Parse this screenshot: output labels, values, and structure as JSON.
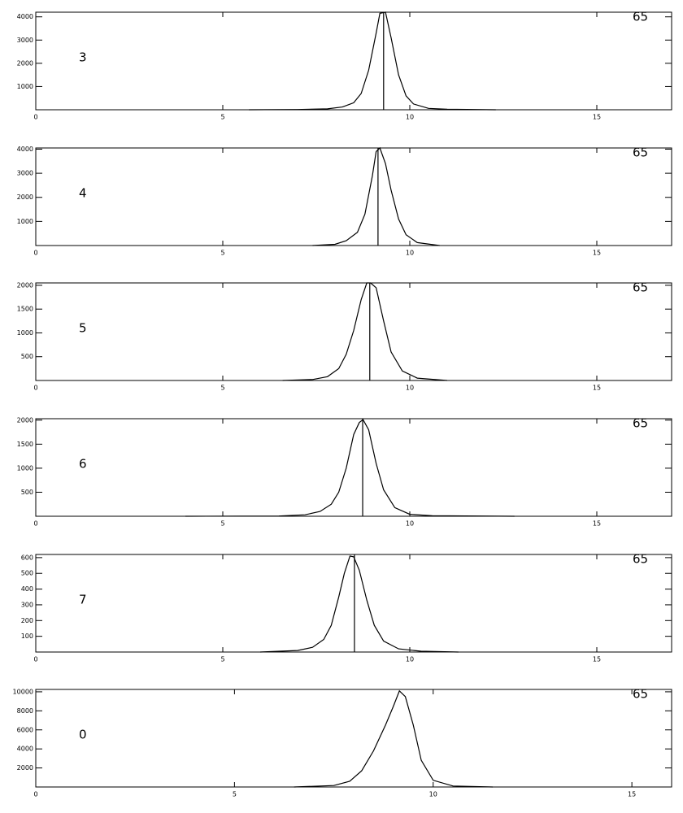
{
  "chart_data": [
    {
      "type": "line",
      "label": "3",
      "annotation": "65",
      "x": [
        5.7,
        7.0,
        7.8,
        8.2,
        8.5,
        8.7,
        8.9,
        9.1,
        9.2,
        9.35,
        9.5,
        9.7,
        9.9,
        10.1,
        10.5,
        11.0,
        12.3
      ],
      "values": [
        0,
        10,
        40,
        120,
        300,
        700,
        1700,
        3300,
        4150,
        4200,
        3100,
        1500,
        600,
        250,
        60,
        20,
        0
      ],
      "vline": 9.3,
      "xlim": [
        0,
        17
      ],
      "xticks": [
        0,
        5,
        10,
        15
      ],
      "ylim": [
        0,
        4200
      ],
      "yticks": [
        1000,
        2000,
        3000,
        4000
      ],
      "color": "#000000"
    },
    {
      "type": "line",
      "label": "4",
      "annotation": "65",
      "x": [
        7.4,
        8.0,
        8.3,
        8.6,
        8.8,
        9.0,
        9.1,
        9.2,
        9.35,
        9.5,
        9.7,
        9.9,
        10.2,
        10.8
      ],
      "values": [
        0,
        50,
        200,
        550,
        1300,
        2900,
        3900,
        4050,
        3400,
        2300,
        1100,
        450,
        120,
        0
      ],
      "vline": 9.15,
      "xlim": [
        0,
        17
      ],
      "xticks": [
        0,
        5,
        10,
        15
      ],
      "ylim": [
        0,
        4050
      ],
      "yticks": [
        1000,
        2000,
        3000,
        4000
      ],
      "color": "#000000"
    },
    {
      "type": "line",
      "label": "5",
      "annotation": "65",
      "x": [
        6.6,
        7.4,
        7.8,
        8.1,
        8.3,
        8.5,
        8.7,
        8.85,
        8.95,
        9.1,
        9.3,
        9.5,
        9.8,
        10.2,
        11.0
      ],
      "values": [
        0,
        20,
        80,
        250,
        550,
        1050,
        1700,
        2050,
        2050,
        1950,
        1250,
        600,
        200,
        50,
        0
      ],
      "vline": 8.93,
      "xlim": [
        0,
        17
      ],
      "xticks": [
        0,
        5,
        10,
        15
      ],
      "ylim": [
        0,
        2050
      ],
      "yticks": [
        500,
        1000,
        1500,
        2000
      ],
      "color": "#000000"
    },
    {
      "type": "line",
      "label": "6",
      "annotation": "65",
      "x": [
        4.0,
        6.5,
        7.2,
        7.6,
        7.9,
        8.1,
        8.3,
        8.5,
        8.65,
        8.75,
        8.9,
        9.1,
        9.3,
        9.6,
        10.0,
        10.6,
        12.8
      ],
      "values": [
        0,
        5,
        30,
        100,
        250,
        500,
        1000,
        1700,
        1950,
        2010,
        1800,
        1100,
        550,
        180,
        40,
        10,
        0
      ],
      "vline": 8.74,
      "xlim": [
        0,
        17
      ],
      "xticks": [
        0,
        5,
        10,
        15
      ],
      "ylim": [
        0,
        2030
      ],
      "yticks": [
        500,
        1000,
        1500,
        2000
      ],
      "color": "#000000"
    },
    {
      "type": "line",
      "label": "7",
      "annotation": "65",
      "x": [
        6.0,
        7.0,
        7.4,
        7.7,
        7.9,
        8.1,
        8.25,
        8.4,
        8.5,
        8.65,
        8.85,
        9.05,
        9.3,
        9.7,
        10.3,
        11.3
      ],
      "values": [
        0,
        10,
        30,
        80,
        170,
        350,
        500,
        610,
        605,
        520,
        330,
        170,
        70,
        20,
        5,
        0
      ],
      "vline": 8.52,
      "xlim": [
        0,
        17
      ],
      "xticks": [
        0,
        5,
        10,
        15
      ],
      "ylim": [
        0,
        620
      ],
      "yticks": [
        100,
        200,
        300,
        400,
        500,
        600
      ],
      "color": "#000000"
    },
    {
      "type": "line",
      "label": "0",
      "annotation": "65",
      "x": [
        6.5,
        7.5,
        7.9,
        8.2,
        8.5,
        8.8,
        9.0,
        9.15,
        9.3,
        9.5,
        9.7,
        10.0,
        10.5,
        11.5
      ],
      "values": [
        0,
        150,
        600,
        1700,
        3800,
        6500,
        8500,
        10100,
        9500,
        6500,
        2800,
        700,
        100,
        0
      ],
      "xlim": [
        0,
        16
      ],
      "xticks": [
        0,
        5,
        10,
        15
      ],
      "ylim": [
        0,
        10250
      ],
      "yticks": [
        2000,
        4000,
        6000,
        8000,
        10000
      ],
      "color": "#000000"
    }
  ]
}
